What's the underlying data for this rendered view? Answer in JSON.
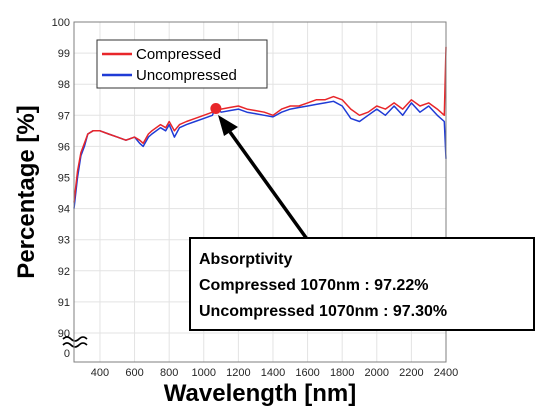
{
  "chart_data": {
    "type": "line",
    "title": "",
    "xlabel": "Wavelength [nm]",
    "ylabel": "Percentage [%]",
    "xlim": [
      250,
      2400
    ],
    "ylim": [
      90,
      100
    ],
    "axis_break": {
      "shown_zero_tick": "0",
      "break_between": [
        0,
        90
      ]
    },
    "x_ticks": [
      400,
      600,
      800,
      1000,
      1200,
      1400,
      1600,
      1800,
      2000,
      2200,
      2400
    ],
    "y_ticks": [
      90,
      91,
      92,
      93,
      94,
      95,
      96,
      97,
      98,
      99,
      100
    ],
    "grid": true,
    "legend_position": "top-left",
    "series": [
      {
        "name": "Compressed",
        "color": "#e8262a",
        "x": [
          250,
          270,
          290,
          310,
          330,
          360,
          400,
          450,
          500,
          550,
          600,
          630,
          650,
          680,
          700,
          750,
          780,
          800,
          830,
          860,
          900,
          950,
          1000,
          1050,
          1070,
          1100,
          1150,
          1200,
          1250,
          1300,
          1350,
          1400,
          1450,
          1500,
          1550,
          1600,
          1650,
          1700,
          1750,
          1800,
          1850,
          1900,
          1950,
          2000,
          2050,
          2100,
          2150,
          2200,
          2250,
          2300,
          2350,
          2390,
          2400
        ],
        "y": [
          94.2,
          95.2,
          95.8,
          96.1,
          96.4,
          96.5,
          96.5,
          96.4,
          96.3,
          96.2,
          96.3,
          96.2,
          96.1,
          96.4,
          96.5,
          96.7,
          96.6,
          96.8,
          96.5,
          96.7,
          96.8,
          96.9,
          97.0,
          97.1,
          97.22,
          97.2,
          97.25,
          97.3,
          97.2,
          97.15,
          97.1,
          97.0,
          97.2,
          97.3,
          97.3,
          97.4,
          97.5,
          97.5,
          97.6,
          97.5,
          97.2,
          97.0,
          97.1,
          97.3,
          97.2,
          97.4,
          97.2,
          97.5,
          97.3,
          97.4,
          97.2,
          97.0,
          99.2
        ]
      },
      {
        "name": "Uncompressed",
        "color": "#1f3bd6",
        "x": [
          250,
          270,
          290,
          310,
          330,
          360,
          400,
          450,
          500,
          550,
          600,
          630,
          650,
          680,
          700,
          750,
          780,
          800,
          830,
          860,
          900,
          950,
          1000,
          1050,
          1070,
          1100,
          1150,
          1200,
          1250,
          1300,
          1350,
          1400,
          1450,
          1500,
          1550,
          1600,
          1650,
          1700,
          1750,
          1800,
          1850,
          1900,
          1950,
          2000,
          2050,
          2100,
          2150,
          2200,
          2250,
          2300,
          2350,
          2390,
          2400
        ],
        "y": [
          94.0,
          95.0,
          95.7,
          96.0,
          96.4,
          96.5,
          96.5,
          96.4,
          96.3,
          96.2,
          96.3,
          96.1,
          96.0,
          96.3,
          96.4,
          96.6,
          96.5,
          96.7,
          96.3,
          96.6,
          96.7,
          96.8,
          96.9,
          97.0,
          97.3,
          97.1,
          97.15,
          97.2,
          97.1,
          97.05,
          97.0,
          96.95,
          97.1,
          97.2,
          97.25,
          97.3,
          97.35,
          97.4,
          97.45,
          97.3,
          96.9,
          96.8,
          97.0,
          97.2,
          97.0,
          97.3,
          97.0,
          97.4,
          97.1,
          97.3,
          97.0,
          96.8,
          95.6
        ]
      }
    ],
    "marker": {
      "x": 1070,
      "y": 97.22,
      "color": "#e8262a"
    },
    "annotation": {
      "lines": [
        "Absorptivity",
        "Compressed 1070nm : 97.22%",
        "Uncompressed 1070nm : 97.30%"
      ]
    }
  }
}
